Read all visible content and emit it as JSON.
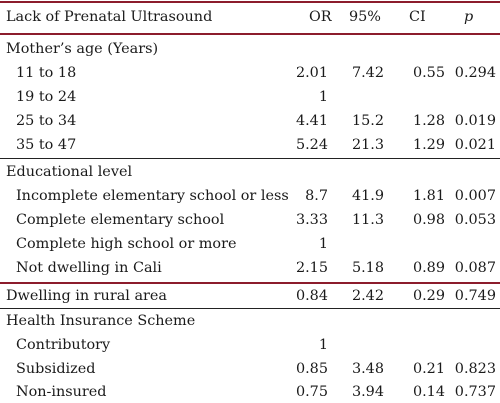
{
  "header": {
    "title": "Lack of Prenatal Ultrasound",
    "col_or": "OR",
    "col_95": "95%",
    "col_ci": "CI",
    "col_p": "p"
  },
  "sections": [
    {
      "title": "Mother’s age (Years)",
      "rows": [
        {
          "label": "11 to 18",
          "or": "2.01",
          "lo": "7.42",
          "ci": "0.55",
          "p": "0.294"
        },
        {
          "label": "19 to 24",
          "or": "1",
          "lo": "",
          "ci": "",
          "p": ""
        },
        {
          "label": "25 to 34",
          "or": "4.41",
          "lo": "15.2",
          "ci": "1.28",
          "p": "0.019"
        },
        {
          "label": "35 to 47",
          "or": "5.24",
          "lo": "21.3",
          "ci": "1.29",
          "p": "0.021"
        }
      ]
    },
    {
      "title": "Educational level",
      "rows": [
        {
          "label": "Incomplete elementary school or less",
          "or": "8.7",
          "lo": "41.9",
          "ci": "1.81",
          "p": "0.007"
        },
        {
          "label": "Complete elementary school",
          "or": "3.33",
          "lo": "11.3",
          "ci": "0.98",
          "p": "0.053"
        },
        {
          "label": "Complete high school or more",
          "or": "1",
          "lo": "",
          "ci": "",
          "p": ""
        },
        {
          "label": "Not dwelling in Cali",
          "or": "2.15",
          "lo": "5.18",
          "ci": "0.89",
          "p": "0.087"
        }
      ]
    },
    {
      "title": "Dwelling in rural area",
      "or": "0.84",
      "lo": "2.42",
      "ci": "0.29",
      "p": "0.749"
    },
    {
      "title": "Health Insurance Scheme",
      "rows": [
        {
          "label": "Contributory",
          "or": "1",
          "lo": "",
          "ci": "",
          "p": ""
        },
        {
          "label": "Subsidized",
          "or": "0.85",
          "lo": "3.48",
          "ci": "0.21",
          "p": "0.823"
        },
        {
          "label": "Non-insured",
          "or": "0.75",
          "lo": "3.94",
          "ci": "0.14",
          "p": "0.737"
        }
      ]
    }
  ],
  "colors": {
    "rule_accent": "#8c1c2c",
    "rule_plain": "#222222",
    "text": "#1a1a1a"
  }
}
